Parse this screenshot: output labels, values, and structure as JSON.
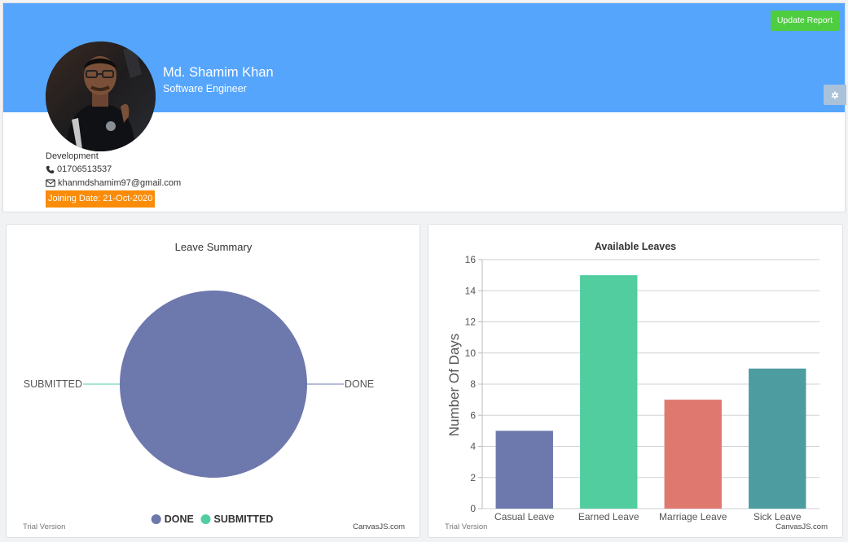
{
  "profile": {
    "name": "Md. Shamim Khan",
    "role": "Software Engineer",
    "department": "Development",
    "phone": "01706513537",
    "email": "khanmdshamim97@gmail.com",
    "joining_date": "Joining Date: 21-Oct-2020",
    "update_button_label": "Update Report"
  },
  "colors": {
    "banner": "#55a5fd",
    "update_button": "#4fcd41",
    "joining_badge": "#fa8c09"
  },
  "icons": {
    "settings": "gear-icon",
    "phone": "phone-icon",
    "email": "envelope-icon"
  },
  "leave_summary": {
    "watermark_left": "Trial Version",
    "watermark_right": "CanvasJS.com"
  },
  "available_leaves": {
    "watermark_left": "Trial Version",
    "watermark_right": "CanvasJS.com"
  },
  "chart_data": [
    {
      "type": "pie",
      "title": "Leave Summary",
      "categories": [
        "DONE",
        "SUBMITTED"
      ],
      "values": [
        1,
        0
      ],
      "colors": [
        "#6d78ad",
        "#51cda0"
      ],
      "legend_position": "bottom"
    },
    {
      "type": "bar",
      "title": "Available Leaves",
      "categories": [
        "Casual Leave",
        "Earned Leave",
        "Marriage Leave",
        "Sick Leave"
      ],
      "values": [
        5,
        15,
        7,
        9
      ],
      "colors": [
        "#6d78ad",
        "#51cda0",
        "#df7970",
        "#4c9ca0"
      ],
      "xlabel": "",
      "ylabel": "Number Of Days",
      "ylim": [
        0,
        16
      ],
      "yticks": [
        0,
        2,
        4,
        6,
        8,
        10,
        12,
        14,
        16
      ],
      "grid": true
    }
  ]
}
